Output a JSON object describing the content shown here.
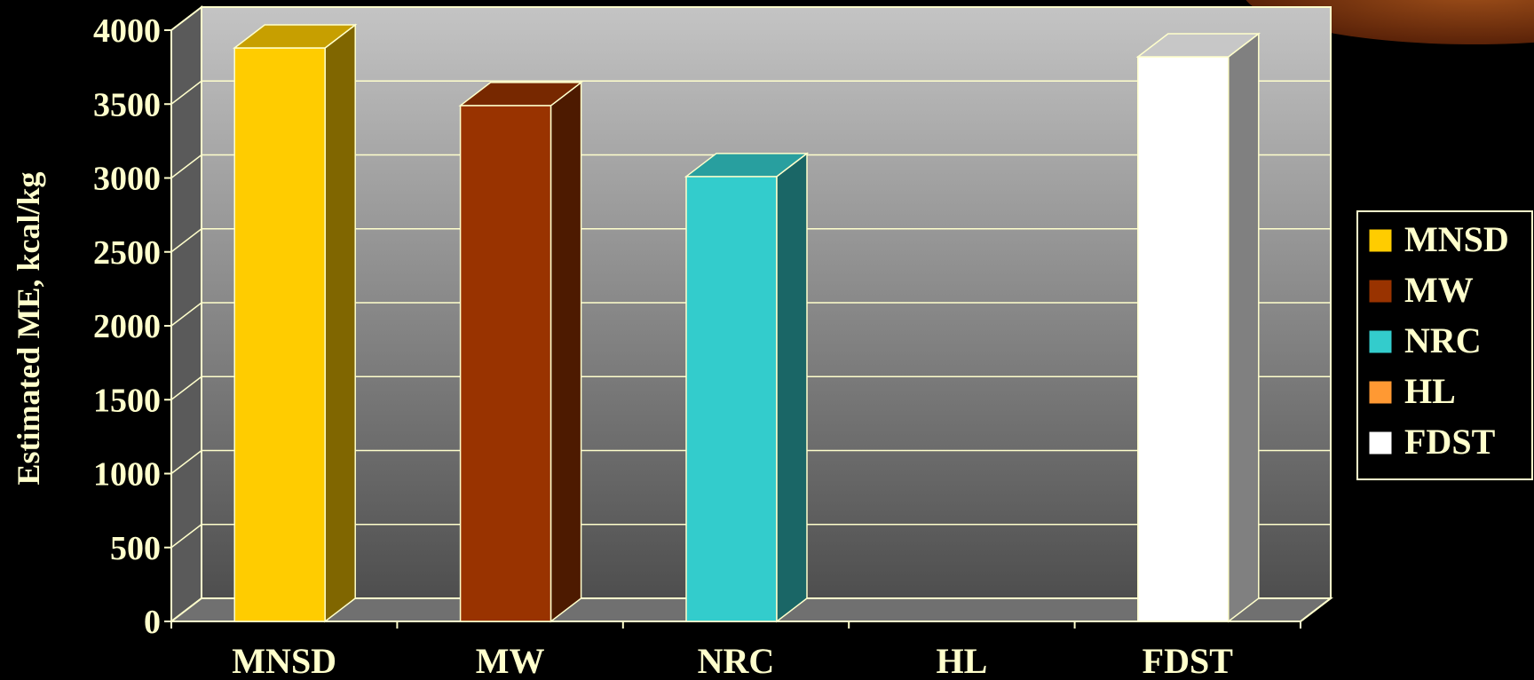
{
  "chart_data": {
    "type": "bar",
    "title": "",
    "ylabel": "Estimated ME, kcal/kg",
    "xlabel": "",
    "categories": [
      "MNSD",
      "MW",
      "NRC",
      "HL",
      "FDST"
    ],
    "series": [
      {
        "name": "MNSD",
        "color": "#ffcc00",
        "values": [
          3880,
          null,
          null,
          null,
          null
        ]
      },
      {
        "name": "MW",
        "color": "#993300",
        "values": [
          null,
          3490,
          null,
          null,
          null
        ]
      },
      {
        "name": "NRC",
        "color": "#33cccc",
        "values": [
          null,
          null,
          3010,
          null,
          null
        ]
      },
      {
        "name": "HL",
        "color": "#ff9933",
        "values": [
          null,
          null,
          null,
          0,
          null
        ]
      },
      {
        "name": "FDST",
        "color": "#ffffff",
        "values": [
          null,
          null,
          null,
          null,
          3820
        ]
      }
    ],
    "ylim": [
      0,
      4000
    ],
    "yticks": [
      0,
      500,
      1000,
      1500,
      2000,
      2500,
      3000,
      3500,
      4000
    ],
    "grid": true,
    "legend": "right",
    "style": "3d-bar",
    "background": {
      "plot_top_color": "#c4c4c4",
      "plot_bottom_color": "#4e4e4e",
      "page_color": "#000000",
      "accent_color": "#8a3a10"
    }
  }
}
